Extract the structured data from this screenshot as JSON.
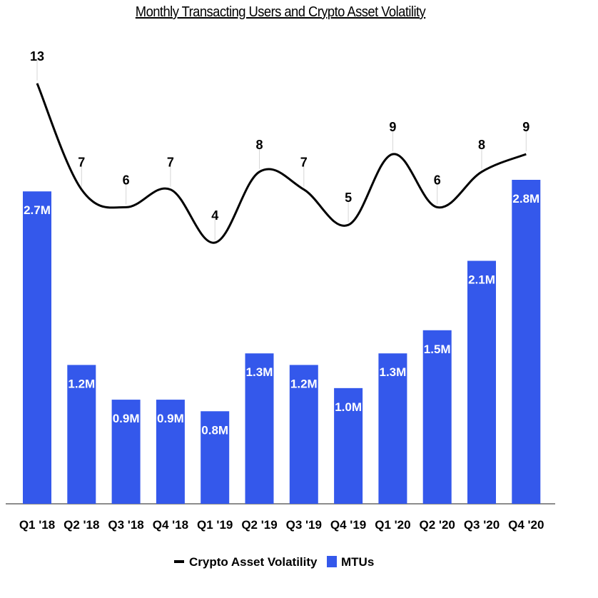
{
  "chart_data": {
    "type": "bar",
    "title": "Monthly Transacting Users and Crypto Asset Volatility",
    "categories": [
      "Q1 '18",
      "Q2 '18",
      "Q3 '18",
      "Q4 '18",
      "Q1 '19",
      "Q2 '19",
      "Q3 '19",
      "Q4 '19",
      "Q1 '20",
      "Q2 '20",
      "Q3 '20",
      "Q4 '20"
    ],
    "series": [
      {
        "name": "MTUs",
        "type": "bar",
        "values": [
          2.7,
          1.2,
          0.9,
          0.9,
          0.8,
          1.3,
          1.2,
          1.0,
          1.3,
          1.5,
          2.1,
          2.8
        ],
        "labels": [
          "2.7M",
          "1.2M",
          "0.9M",
          "0.9M",
          "0.8M",
          "1.3M",
          "1.2M",
          "1.0M",
          "1.3M",
          "1.5M",
          "2.1M",
          "2.8M"
        ],
        "color": "#3458EB"
      },
      {
        "name": "Crypto Asset Volatility",
        "type": "line",
        "values": [
          13,
          7,
          6,
          7,
          4,
          8,
          7,
          5,
          9,
          6,
          8,
          9
        ],
        "labels": [
          "13",
          "7",
          "6",
          "7",
          "4",
          "8",
          "7",
          "5",
          "9",
          "6",
          "8",
          "9"
        ],
        "color": "#000000"
      }
    ],
    "legend": [
      "Crypto Asset Volatility",
      "MTUs"
    ],
    "legend_position": "bottom",
    "xlabel": "",
    "ylabel": "",
    "grid": false
  }
}
